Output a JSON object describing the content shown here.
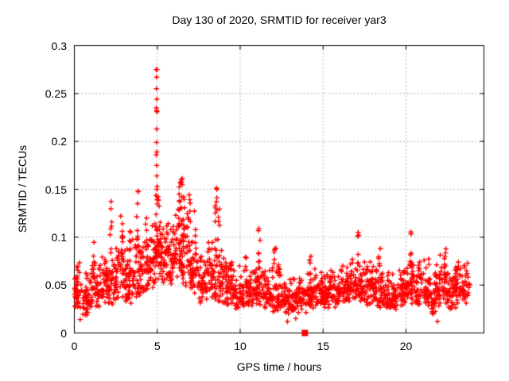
{
  "chart_data": {
    "type": "scatter",
    "title": "Day 130 of 2020, SRMTID for receiver yar3",
    "xlabel": "GPS time / hours",
    "ylabel": "SRMTID / TECUs",
    "xlim": [
      0,
      24.7
    ],
    "ylim": [
      0,
      0.3
    ],
    "xticks": [
      0,
      5,
      10,
      15,
      20
    ],
    "xtick_labels": [
      "0",
      "5",
      "10",
      "15",
      "20"
    ],
    "yticks": [
      0,
      0.05,
      0.1,
      0.15,
      0.2,
      0.25,
      0.3
    ],
    "ytick_labels": [
      "0",
      "0.05",
      "0.1",
      "0.15",
      "0.2",
      "0.25",
      "0.3"
    ],
    "grid": true,
    "legend": "none",
    "marker": "plus",
    "marker_color": "#ff0000",
    "grid_color": "#a0a0a0",
    "axis_color": "#000000",
    "background_color": "#ffffff",
    "seed": 20200509,
    "square_marker": {
      "x": 13.9,
      "y": 0.0
    },
    "peak_points": [
      [
        4.93,
        0.275
      ],
      [
        4.99,
        0.275
      ],
      [
        4.96,
        0.267
      ],
      [
        4.95,
        0.255
      ],
      [
        4.97,
        0.244
      ],
      [
        4.94,
        0.235
      ],
      [
        4.96,
        0.232
      ],
      [
        4.99,
        0.231
      ],
      [
        4.96,
        0.213
      ],
      [
        4.95,
        0.199
      ],
      [
        4.97,
        0.189
      ],
      [
        4.94,
        0.186
      ],
      [
        4.96,
        0.175
      ],
      [
        4.97,
        0.164
      ],
      [
        6.45,
        0.16
      ],
      [
        6.5,
        0.155
      ],
      [
        8.6,
        0.15
      ],
      [
        3.85,
        0.148
      ],
      [
        12.85,
        0.012
      ],
      [
        21.9,
        0.012
      ],
      [
        0.35,
        0.014
      ],
      [
        13.35,
        0.015
      ]
    ],
    "columns": [
      [
        1.2,
        0.055,
        0.095,
        6
      ],
      [
        2.2,
        0.08,
        0.138,
        8
      ],
      [
        2.85,
        0.08,
        0.123,
        7
      ],
      [
        3.35,
        0.07,
        0.11,
        6
      ],
      [
        3.8,
        0.08,
        0.148,
        9
      ],
      [
        4.35,
        0.07,
        0.122,
        7
      ],
      [
        4.95,
        0.07,
        0.158,
        16
      ],
      [
        5.1,
        0.08,
        0.145,
        10
      ],
      [
        5.6,
        0.08,
        0.132,
        7
      ],
      [
        6.3,
        0.09,
        0.157,
        10
      ],
      [
        6.45,
        0.1,
        0.163,
        10
      ],
      [
        6.6,
        0.09,
        0.15,
        8
      ],
      [
        6.95,
        0.08,
        0.147,
        8
      ],
      [
        7.25,
        0.07,
        0.13,
        4
      ],
      [
        8.55,
        0.09,
        0.153,
        9
      ],
      [
        8.7,
        0.09,
        0.138,
        5
      ],
      [
        9.45,
        0.05,
        0.103,
        5
      ],
      [
        11.15,
        0.05,
        0.11,
        8
      ],
      [
        12.1,
        0.05,
        0.09,
        5
      ],
      [
        14.2,
        0.05,
        0.09,
        6
      ],
      [
        15.45,
        0.045,
        0.08,
        5
      ],
      [
        17.1,
        0.05,
        0.113,
        6
      ],
      [
        18.4,
        0.045,
        0.09,
        5
      ],
      [
        20.3,
        0.05,
        0.111,
        10
      ],
      [
        21.8,
        0.045,
        0.085,
        5
      ],
      [
        22.35,
        0.04,
        0.088,
        6
      ]
    ],
    "segments": [
      [
        0,
        0.5,
        40,
        0.025,
        0.075
      ],
      [
        0.5,
        1,
        40,
        0.018,
        0.065
      ],
      [
        1,
        1.5,
        40,
        0.025,
        0.08
      ],
      [
        1.5,
        2,
        40,
        0.03,
        0.085
      ],
      [
        2,
        2.5,
        40,
        0.03,
        0.1
      ],
      [
        2.5,
        3,
        40,
        0.035,
        0.105
      ],
      [
        3,
        3.5,
        40,
        0.03,
        0.095
      ],
      [
        3.5,
        4,
        40,
        0.035,
        0.11
      ],
      [
        4,
        4.5,
        40,
        0.04,
        0.115
      ],
      [
        4.5,
        5,
        40,
        0.045,
        0.12
      ],
      [
        5,
        5.5,
        40,
        0.05,
        0.125
      ],
      [
        5.5,
        6,
        40,
        0.05,
        0.12
      ],
      [
        6,
        6.5,
        40,
        0.05,
        0.135
      ],
      [
        6.5,
        7,
        40,
        0.045,
        0.13
      ],
      [
        7,
        7.5,
        40,
        0.04,
        0.1
      ],
      [
        7.5,
        8,
        40,
        0.03,
        0.09
      ],
      [
        8,
        8.5,
        40,
        0.035,
        0.1
      ],
      [
        8.5,
        9,
        40,
        0.03,
        0.1
      ],
      [
        9,
        9.5,
        38,
        0.028,
        0.085
      ],
      [
        9.5,
        10,
        38,
        0.025,
        0.08
      ],
      [
        10,
        10.5,
        38,
        0.025,
        0.082
      ],
      [
        10.5,
        11,
        38,
        0.025,
        0.075
      ],
      [
        11,
        11.5,
        38,
        0.025,
        0.08
      ],
      [
        11.5,
        12,
        38,
        0.022,
        0.07
      ],
      [
        12,
        12.5,
        38,
        0.022,
        0.075
      ],
      [
        12.5,
        13,
        38,
        0.02,
        0.065
      ],
      [
        13,
        13.5,
        38,
        0.02,
        0.06
      ],
      [
        13.5,
        14,
        38,
        0.02,
        0.062
      ],
      [
        14,
        14.5,
        38,
        0.025,
        0.068
      ],
      [
        14.5,
        15,
        38,
        0.025,
        0.072
      ],
      [
        15,
        15.5,
        38,
        0.025,
        0.07
      ],
      [
        15.5,
        16,
        38,
        0.025,
        0.07
      ],
      [
        16,
        16.5,
        38,
        0.03,
        0.08
      ],
      [
        16.5,
        17,
        38,
        0.03,
        0.082
      ],
      [
        17,
        17.5,
        38,
        0.03,
        0.08
      ],
      [
        17.5,
        18,
        38,
        0.028,
        0.08
      ],
      [
        18,
        18.5,
        38,
        0.025,
        0.072
      ],
      [
        18.5,
        19,
        38,
        0.022,
        0.07
      ],
      [
        19,
        19.5,
        38,
        0.02,
        0.065
      ],
      [
        19.5,
        20,
        38,
        0.025,
        0.075
      ],
      [
        20,
        20.5,
        38,
        0.028,
        0.085
      ],
      [
        20.5,
        21,
        38,
        0.028,
        0.08
      ],
      [
        21,
        21.5,
        38,
        0.028,
        0.082
      ],
      [
        21.5,
        22,
        38,
        0.018,
        0.07
      ],
      [
        22,
        22.5,
        38,
        0.03,
        0.088
      ],
      [
        22.5,
        23,
        38,
        0.025,
        0.075
      ],
      [
        23,
        23.4,
        30,
        0.028,
        0.08
      ],
      [
        23.4,
        23.85,
        30,
        0.03,
        0.075
      ]
    ]
  }
}
